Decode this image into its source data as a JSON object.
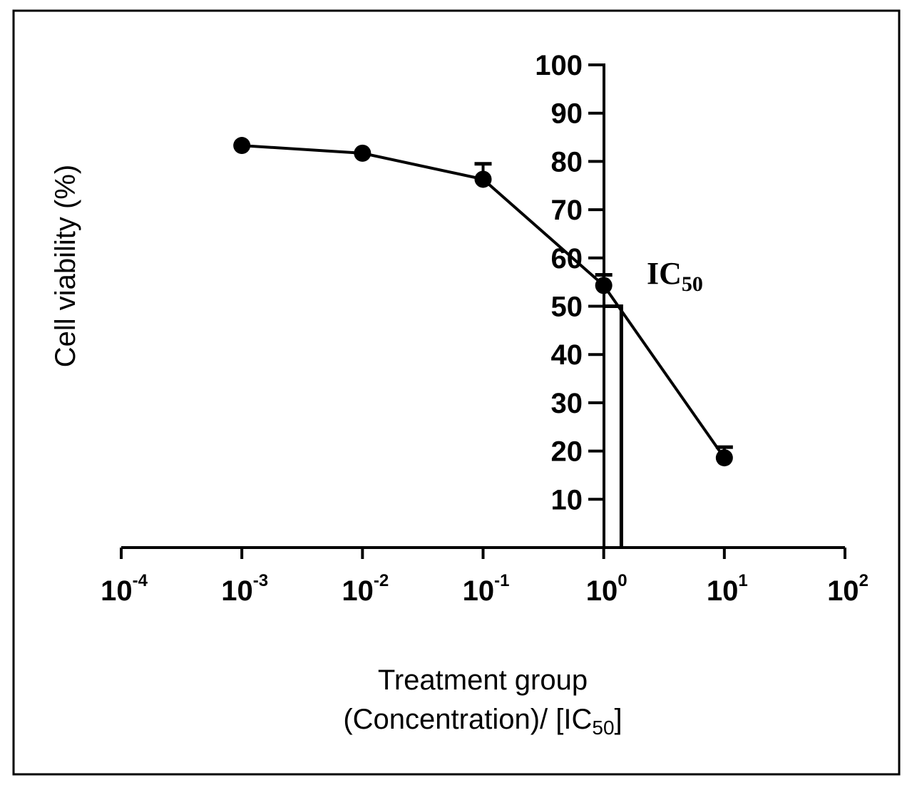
{
  "chart_data": {
    "type": "line",
    "x_scale": "log",
    "xlabel": {
      "line1": "Treatment group",
      "line2_prefix": "(Concentration)/ [IC",
      "line2_sub": "50",
      "line2_suffix": "]"
    },
    "ylabel": "Cell viability (%)",
    "xlim": [
      0.0001,
      100
    ],
    "ylim": [
      0,
      100
    ],
    "x_ticks": [
      {
        "base": "10",
        "exp": "-4"
      },
      {
        "base": "10",
        "exp": "-3"
      },
      {
        "base": "10",
        "exp": "-2"
      },
      {
        "base": "10",
        "exp": "-1"
      },
      {
        "base": "10",
        "exp": "0"
      },
      {
        "base": "10",
        "exp": "1"
      },
      {
        "base": "10",
        "exp": "2"
      }
    ],
    "y_ticks": [
      "10",
      "20",
      "30",
      "40",
      "50",
      "60",
      "70",
      "80",
      "90",
      "100"
    ],
    "series": [
      {
        "x": [
          0.001,
          0.01,
          0.1,
          1,
          10
        ],
        "y": [
          83.3,
          81.7,
          76.3,
          54.3,
          18.6
        ],
        "error_upper": [
          83.3,
          81.7,
          79.5,
          56.5,
          20.8
        ]
      }
    ],
    "annotation": {
      "text": "IC",
      "sub": "50",
      "value": 50,
      "x": 1.4
    },
    "grid": false
  }
}
